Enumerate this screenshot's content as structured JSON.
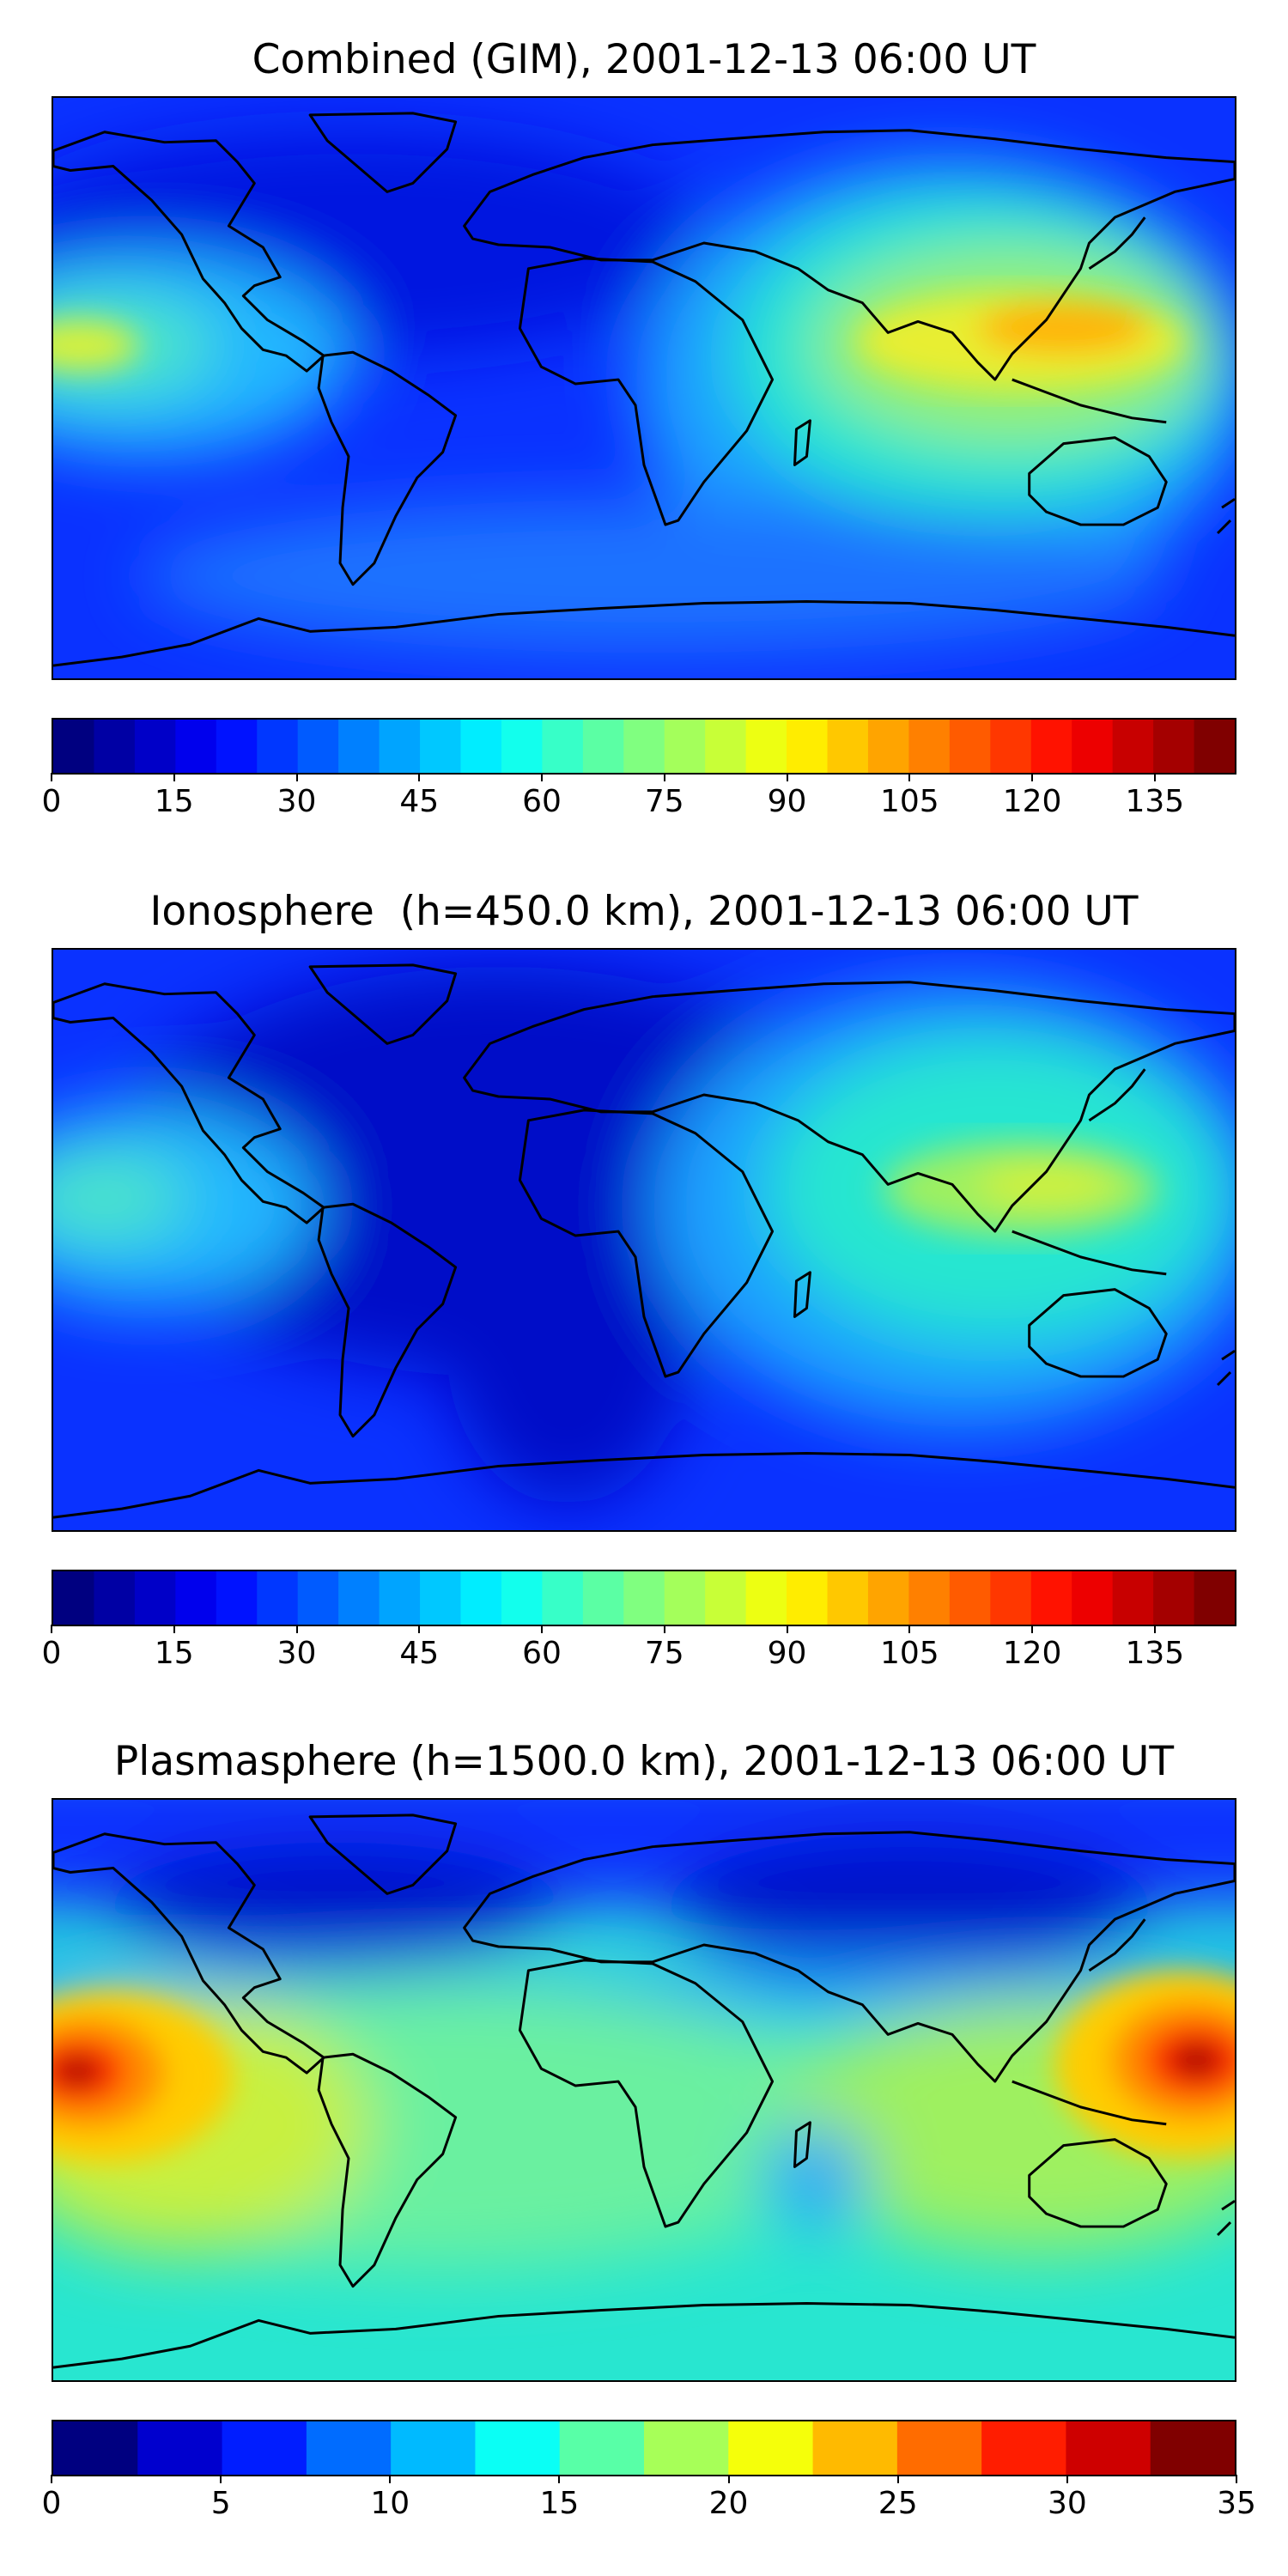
{
  "panels": [
    {
      "title": "Combined (GIM), 2001-12-13 06:00 UT",
      "colorbar": {
        "min": 0,
        "max": 145,
        "levels": 29,
        "ticks": [
          "0",
          "15",
          "30",
          "45",
          "60",
          "75",
          "90",
          "105",
          "120",
          "135"
        ],
        "tick_values": [
          0,
          15,
          30,
          45,
          60,
          75,
          90,
          105,
          120,
          135
        ]
      }
    },
    {
      "title": "Ionosphere  (h=450.0 km), 2001-12-13 06:00 UT",
      "colorbar": {
        "min": 0,
        "max": 145,
        "levels": 29,
        "ticks": [
          "0",
          "15",
          "30",
          "45",
          "60",
          "75",
          "90",
          "105",
          "120",
          "135"
        ],
        "tick_values": [
          0,
          15,
          30,
          45,
          60,
          75,
          90,
          105,
          120,
          135
        ]
      }
    },
    {
      "title": "Plasmasphere (h=1500.0 km), 2001-12-13 06:00 UT",
      "colorbar": {
        "min": 0,
        "max": 35,
        "levels": 14,
        "ticks": [
          "0",
          "5",
          "10",
          "15",
          "20",
          "25",
          "30",
          "35"
        ],
        "tick_values": [
          0,
          5,
          10,
          15,
          20,
          25,
          30,
          35
        ]
      }
    }
  ],
  "colormap": "jet"
}
